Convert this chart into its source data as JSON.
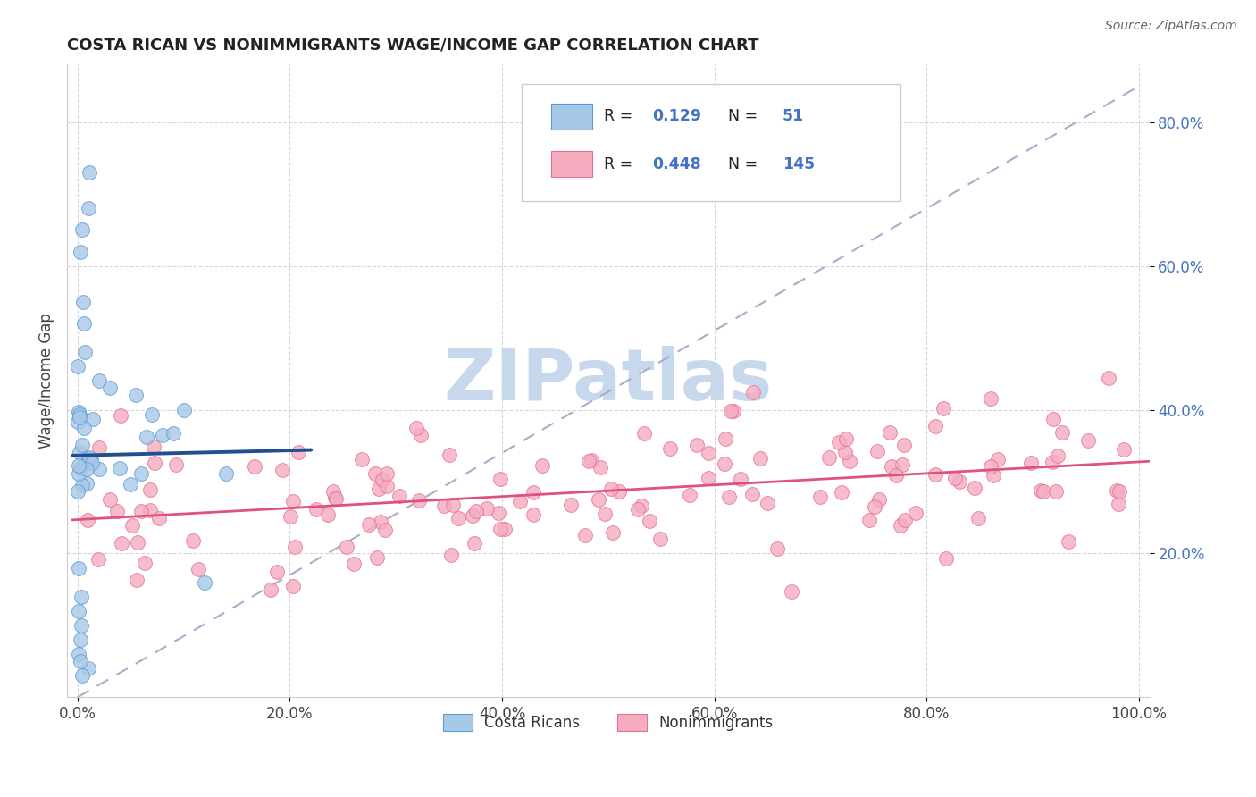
{
  "title": "COSTA RICAN VS NONIMMIGRANTS WAGE/INCOME GAP CORRELATION CHART",
  "source": "Source: ZipAtlas.com",
  "ylabel": "Wage/Income Gap",
  "xlim": [
    -0.01,
    1.01
  ],
  "ylim": [
    0.0,
    0.88
  ],
  "xticks": [
    0.0,
    0.2,
    0.4,
    0.6,
    0.8,
    1.0
  ],
  "xtick_labels": [
    "0.0%",
    "20.0%",
    "40.0%",
    "60.0%",
    "80.0%",
    "100.0%"
  ],
  "yticks": [
    0.2,
    0.4,
    0.6,
    0.8
  ],
  "ytick_labels": [
    "20.0%",
    "40.0%",
    "60.0%",
    "80.0%"
  ],
  "blue_color": "#A8C8E8",
  "blue_edge": "#5B9BD5",
  "pink_color": "#F4ACBE",
  "pink_edge": "#E87090",
  "blue_line_color": "#1F4E91",
  "pink_line_color": "#E05080",
  "dashed_line_color": "#AAAACC",
  "background_color": "#FFFFFF",
  "watermark_color": "#C8D8EC",
  "ytick_color": "#4472C4",
  "title_color": "#222222",
  "source_color": "#666666"
}
